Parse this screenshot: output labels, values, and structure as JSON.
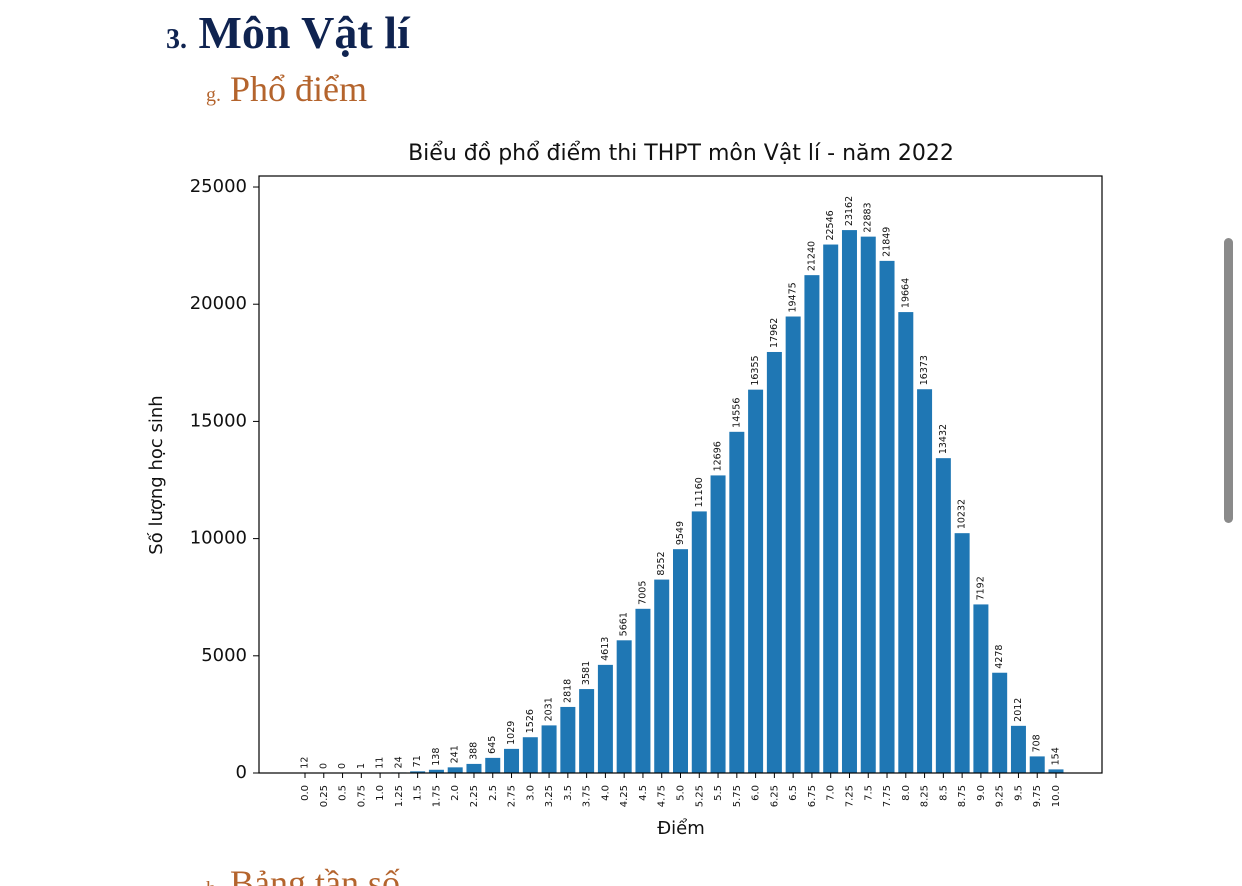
{
  "heading": {
    "number": "3.",
    "text": "Môn Vật lí"
  },
  "subheading": {
    "number": "g.",
    "text": "Phổ điểm"
  },
  "next_heading": {
    "number": "h.",
    "text": "Bảng tần số"
  },
  "chart_data": {
    "type": "bar",
    "title": "Biểu đồ phổ điểm thi THPT môn Vật lí - năm 2022",
    "x_label": "Điểm",
    "y_label": "Số lượng học sinh",
    "categories": [
      "0.0",
      "0.25",
      "0.5",
      "0.75",
      "1.0",
      "1.25",
      "1.5",
      "1.75",
      "2.0",
      "2.25",
      "2.5",
      "2.75",
      "3.0",
      "3.25",
      "3.5",
      "3.75",
      "4.0",
      "4.25",
      "4.5",
      "4.75",
      "5.0",
      "5.25",
      "5.5",
      "5.75",
      "6.0",
      "6.25",
      "6.5",
      "6.75",
      "7.0",
      "7.25",
      "7.5",
      "7.75",
      "8.0",
      "8.25",
      "8.5",
      "8.75",
      "9.0",
      "9.25",
      "9.5",
      "9.75",
      "10.0"
    ],
    "values": [
      12,
      0,
      0,
      1,
      11,
      24,
      71,
      138,
      241,
      388,
      645,
      1029,
      1526,
      2031,
      2818,
      3581,
      4613,
      5661,
      7005,
      8252,
      9549,
      11160,
      12696,
      14556,
      16355,
      17962,
      19475,
      21240,
      22546,
      23162,
      22883,
      21849,
      19664,
      16373,
      13432,
      10232,
      7192,
      4278,
      2012,
      708,
      154
    ],
    "color": "#1f77b4",
    "ylim": [
      0,
      25470
    ],
    "yticks": [
      0,
      5000,
      10000,
      15000,
      20000,
      25000
    ],
    "grid": false
  }
}
